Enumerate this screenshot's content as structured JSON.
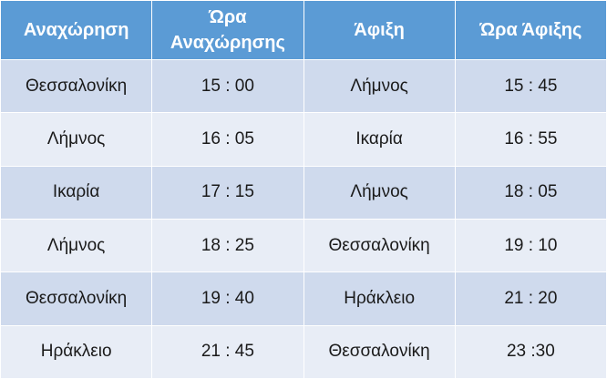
{
  "table": {
    "headers": [
      "Αναχώρηση",
      "Ώρα Αναχώρησης",
      "Άφιξη",
      "Ώρα Άφιξης"
    ],
    "rows": [
      [
        "Θεσσαλονίκη",
        "15 : 00",
        "Λήμνος",
        "15 : 45"
      ],
      [
        "Λήμνος",
        "16 : 05",
        "Ικαρία",
        "16 : 55"
      ],
      [
        "Ικαρία",
        "17 : 15",
        "Λήμνος",
        "18 : 05"
      ],
      [
        "Λήμνος",
        "18 : 25",
        "Θεσσαλονίκη",
        "19 : 10"
      ],
      [
        "Θεσσαλονίκη",
        "19 : 40",
        "Ηράκλειο",
        "21 : 20"
      ],
      [
        "Ηράκλειο",
        "21 : 45",
        "Θεσσαλονίκη",
        "23 :30"
      ]
    ]
  }
}
